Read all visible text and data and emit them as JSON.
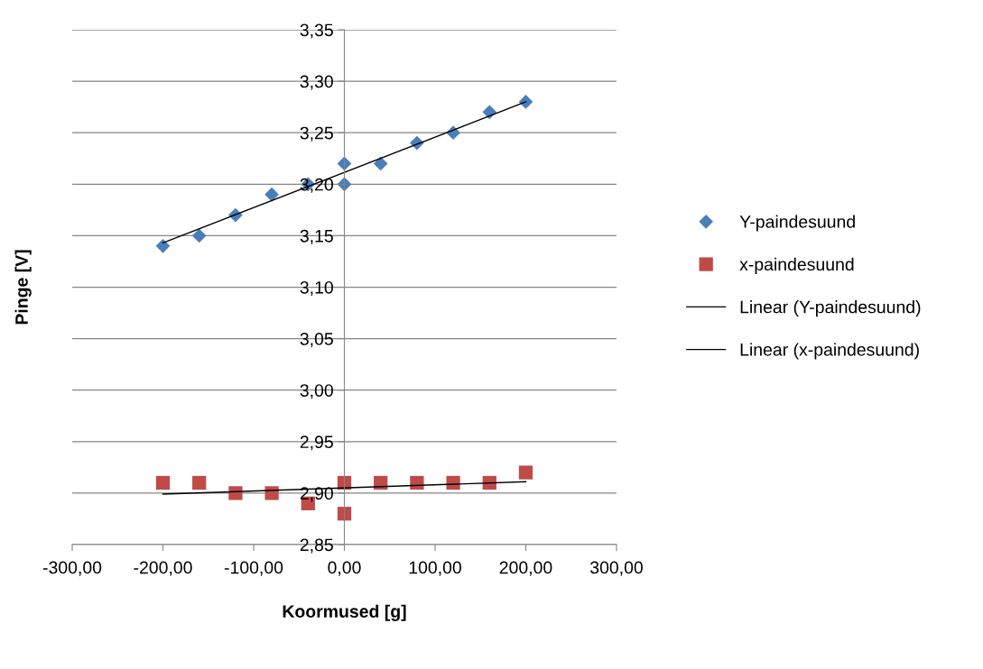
{
  "chart_data": {
    "type": "scatter",
    "xlabel": "Koormused [g]",
    "ylabel": "Pinge [V]",
    "series": [
      {
        "name": "Y-paindesuund",
        "marker": "diamond",
        "color": "#4a7ebb",
        "x": [
          -200,
          -160,
          -120,
          -80,
          -40,
          0,
          0,
          40,
          80,
          120,
          160,
          200
        ],
        "values": [
          3.14,
          3.15,
          3.17,
          3.19,
          3.2,
          3.22,
          3.2,
          3.22,
          3.24,
          3.25,
          3.27,
          3.28
        ]
      },
      {
        "name": "x-paindesuund",
        "marker": "square",
        "color": "#be4b48",
        "x": [
          -200,
          -160,
          -120,
          -80,
          -40,
          0,
          0,
          40,
          80,
          120,
          160,
          200
        ],
        "values": [
          2.91,
          2.91,
          2.9,
          2.9,
          2.89,
          2.91,
          2.88,
          2.91,
          2.91,
          2.91,
          2.91,
          2.92
        ]
      },
      {
        "name": "Linear (Y-paindesuund)",
        "type": "line",
        "marker": "none",
        "color": "#000000",
        "x": [
          -200,
          200
        ],
        "values": [
          3.143,
          3.28
        ]
      },
      {
        "name": "Linear (x-paindesuund)",
        "type": "line",
        "marker": "none",
        "color": "#000000",
        "x": [
          -200,
          200
        ],
        "values": [
          2.899,
          2.911
        ]
      }
    ],
    "xlim": [
      -300,
      300
    ],
    "xticks": [
      {
        "value": -300,
        "label": "-300,00"
      },
      {
        "value": -200,
        "label": "-200,00"
      },
      {
        "value": -100,
        "label": "-100,00"
      },
      {
        "value": 0,
        "label": "0,00"
      },
      {
        "value": 100,
        "label": "100,00"
      },
      {
        "value": 200,
        "label": "200,00"
      },
      {
        "value": 300,
        "label": "300,00"
      }
    ],
    "ylim": [
      2.85,
      3.35
    ],
    "yticks": [
      {
        "value": 2.85,
        "label": "2,85"
      },
      {
        "value": 2.9,
        "label": "2,90"
      },
      {
        "value": 2.95,
        "label": "2,95"
      },
      {
        "value": 3.0,
        "label": "3,00"
      },
      {
        "value": 3.05,
        "label": "3,05"
      },
      {
        "value": 3.1,
        "label": "3,10"
      },
      {
        "value": 3.15,
        "label": "3,15"
      },
      {
        "value": 3.2,
        "label": "3,20"
      },
      {
        "value": 3.25,
        "label": "3,25"
      },
      {
        "value": 3.3,
        "label": "3,30"
      },
      {
        "value": 3.35,
        "label": "3,35"
      }
    ],
    "grid": "y",
    "legend": "right"
  }
}
